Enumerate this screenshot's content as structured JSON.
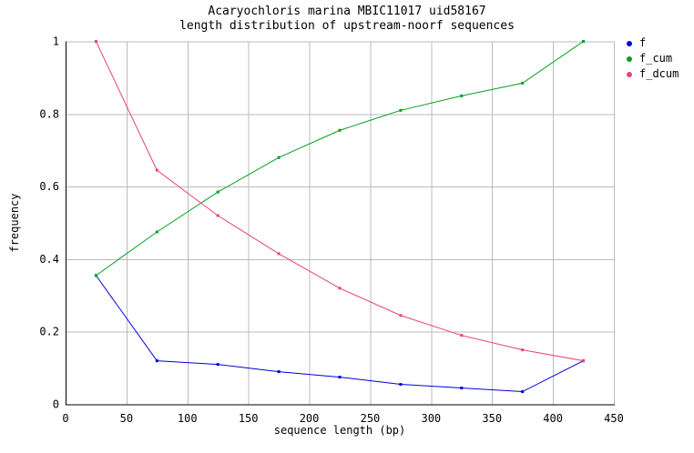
{
  "title_line1": "Acaryochloris marina MBIC11017 uid58167",
  "title_line2": "length distribution of upstream-noorf sequences",
  "chart_data": {
    "type": "line",
    "title": "Acaryochloris marina MBIC11017 uid58167",
    "subtitle": "length distribution of upstream-noorf sequences",
    "xlabel": "sequence length (bp)",
    "ylabel": "frequency",
    "xlim": [
      0,
      450
    ],
    "ylim": [
      0,
      1
    ],
    "xticks": [
      0,
      50,
      100,
      150,
      200,
      250,
      300,
      350,
      400,
      450
    ],
    "yticks": [
      0,
      0.2,
      0.4,
      0.6,
      0.8,
      1
    ],
    "ytick_labels": [
      "0",
      "0.2",
      "0.4",
      "0.6",
      "0.8",
      "1"
    ],
    "grid": true,
    "legend_position": "top-right-outside",
    "marker": "square",
    "x": [
      25,
      75,
      125,
      175,
      225,
      275,
      325,
      375,
      425
    ],
    "series": [
      {
        "name": "f",
        "color": "#0000dd",
        "values": [
          0.355,
          0.12,
          0.11,
          0.09,
          0.075,
          0.055,
          0.045,
          0.035,
          0.12
        ]
      },
      {
        "name": "f_cum",
        "color": "#00a020",
        "values": [
          0.355,
          0.475,
          0.585,
          0.68,
          0.755,
          0.81,
          0.85,
          0.885,
          1.0
        ]
      },
      {
        "name": "f_dcum",
        "color": "#ea4277",
        "values": [
          1.0,
          0.645,
          0.52,
          0.415,
          0.32,
          0.245,
          0.19,
          0.15,
          0.12
        ]
      }
    ],
    "colors": {
      "grid": "#bbbbbb",
      "axis": "#000000",
      "background": "#ffffff"
    }
  }
}
